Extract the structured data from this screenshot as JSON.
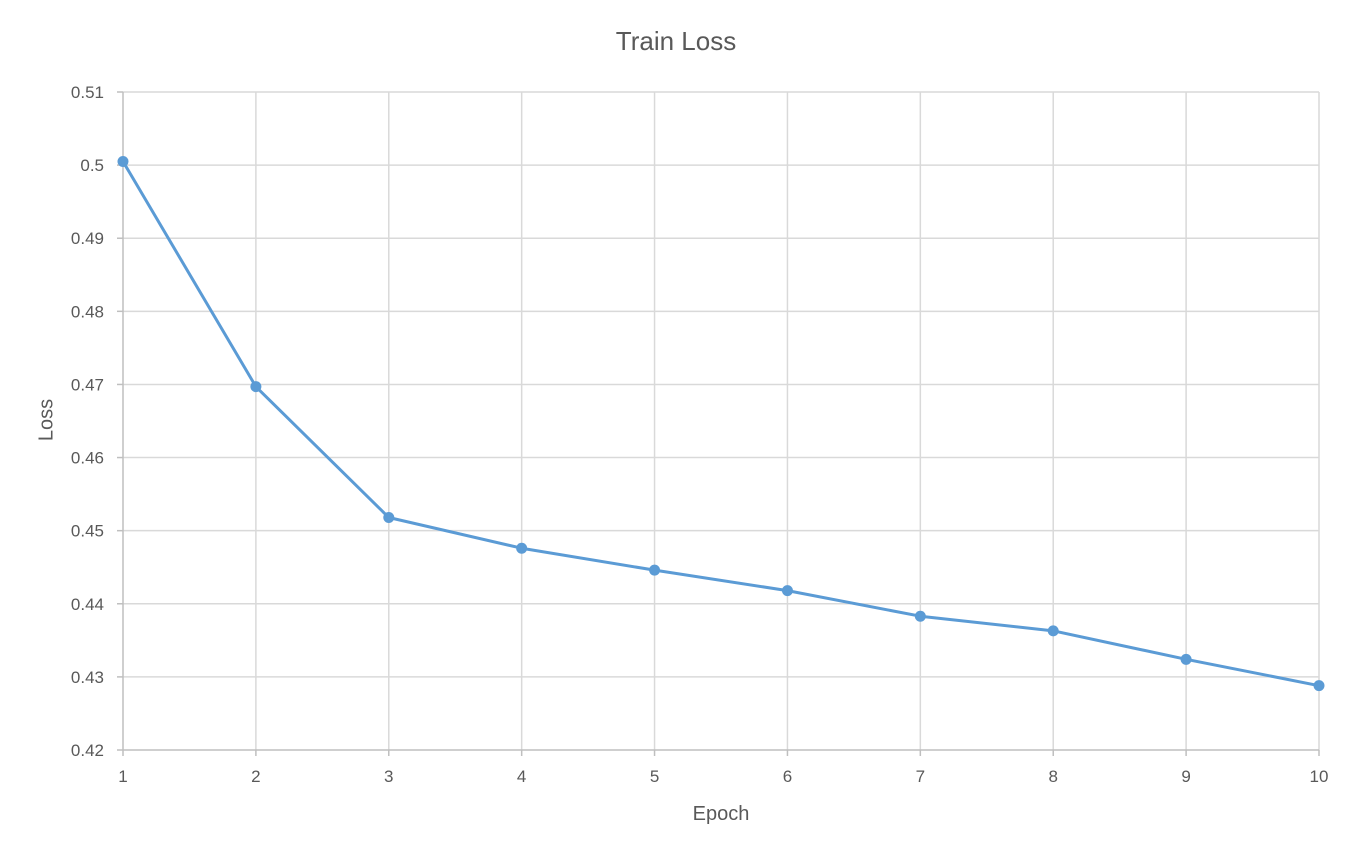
{
  "chart_data": {
    "type": "line",
    "title": "Train Loss",
    "xlabel": "Epoch",
    "ylabel": "Loss",
    "categories": [
      "1",
      "2",
      "3",
      "4",
      "5",
      "6",
      "7",
      "8",
      "9",
      "10"
    ],
    "y_ticks": [
      "0.42",
      "0.43",
      "0.44",
      "0.45",
      "0.46",
      "0.47",
      "0.48",
      "0.49",
      "0.5",
      "0.51"
    ],
    "ylim": [
      0.42,
      0.51
    ],
    "grid": true,
    "legend": "none",
    "series": [
      {
        "color": "#5b9bd5",
        "values": [
          0.5005,
          0.4697,
          0.4518,
          0.4476,
          0.4446,
          0.4418,
          0.4383,
          0.4363,
          0.4324,
          0.4288
        ]
      }
    ]
  }
}
